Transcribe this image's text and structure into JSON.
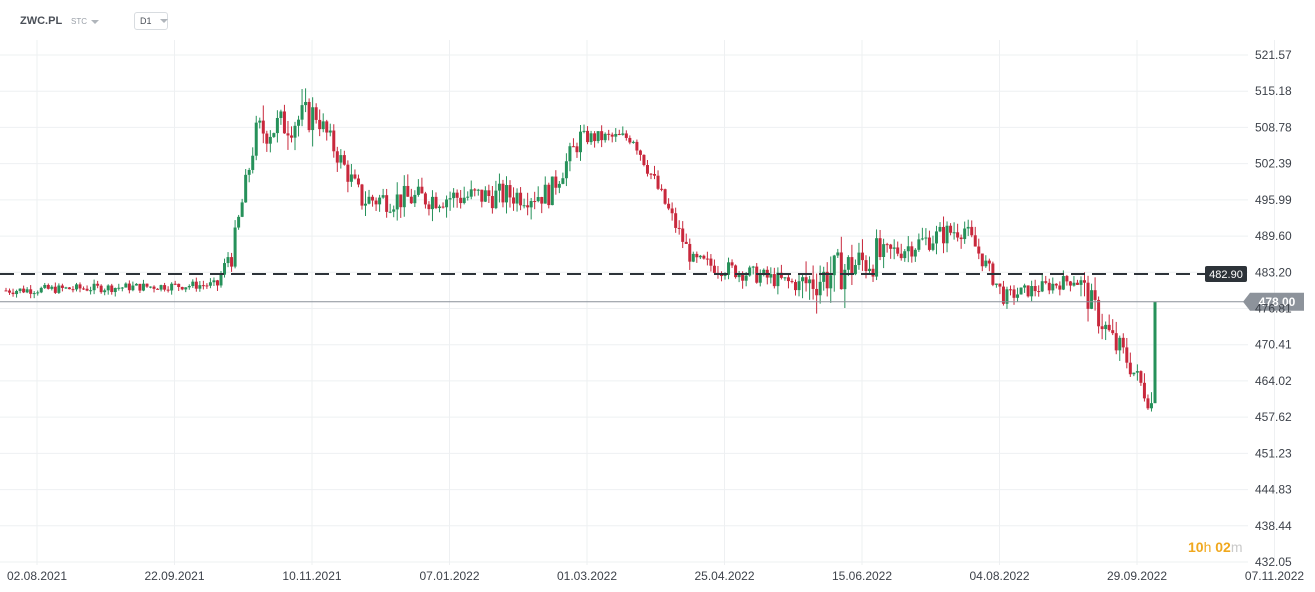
{
  "header": {
    "symbol": "ZWC.PL",
    "source": "STC",
    "timeframe": "D1"
  },
  "countdown": {
    "hours": "10",
    "h": "h",
    "minutes": "02",
    "m": "m"
  },
  "colors": {
    "up": "#26915a",
    "down": "#c8283c",
    "grid": "#eef0f2",
    "dashed_line": "#2d3339",
    "price_line": "#8a9099",
    "price_tag_bg": "#8d939b",
    "level_tag_bg": "#2d3339"
  },
  "chart_data": {
    "type": "candlestick",
    "y_ticks": [
      "521.57",
      "515.18",
      "508.78",
      "502.39",
      "495.99",
      "489.60",
      "483.20",
      "476.81",
      "470.41",
      "464.02",
      "457.62",
      "451.23",
      "444.83",
      "438.44",
      "432.05"
    ],
    "x_ticks": [
      "02.08.2021",
      "22.09.2021",
      "10.11.2021",
      "07.01.2022",
      "01.03.2022",
      "25.04.2022",
      "15.06.2022",
      "04.08.2022",
      "29.09.2022",
      "07.11.2022"
    ],
    "ylim": [
      432.05,
      521.57
    ],
    "horizontal_level": {
      "value": 482.9,
      "label": "482.90",
      "style": "dashed"
    },
    "last_price": {
      "value": 478.0,
      "label": "478.00"
    },
    "segments": [
      {
        "from": 480.0,
        "to": 481.0,
        "count": 60,
        "amp": 1.6
      },
      {
        "from": 481.0,
        "to": 486.0,
        "count": 4,
        "amp": 2.0
      },
      {
        "from": 486.0,
        "to": 508.0,
        "count": 8,
        "amp": 4.0
      },
      {
        "from": 508.0,
        "to": 511.0,
        "count": 16,
        "amp": 6.0
      },
      {
        "from": 511.0,
        "to": 496.0,
        "count": 14,
        "amp": 4.0
      },
      {
        "from": 496.0,
        "to": 497.0,
        "count": 52,
        "amp": 4.5
      },
      {
        "from": 497.0,
        "to": 507.0,
        "count": 10,
        "amp": 4.0
      },
      {
        "from": 507.0,
        "to": 507.0,
        "count": 14,
        "amp": 2.5
      },
      {
        "from": 507.0,
        "to": 485.0,
        "count": 18,
        "amp": 3.0
      },
      {
        "from": 485.0,
        "to": 481.0,
        "count": 30,
        "amp": 3.0
      },
      {
        "from": 481.0,
        "to": 486.0,
        "count": 22,
        "amp": 7.0
      },
      {
        "from": 486.0,
        "to": 491.0,
        "count": 24,
        "amp": 4.0
      },
      {
        "from": 491.0,
        "to": 479.0,
        "count": 12,
        "amp": 3.0
      },
      {
        "from": 479.0,
        "to": 482.0,
        "count": 20,
        "amp": 2.5
      },
      {
        "from": 482.0,
        "to": 470.0,
        "count": 12,
        "amp": 5.0
      },
      {
        "from": 470.0,
        "to": 460.0,
        "count": 10,
        "amp": 4.0
      },
      {
        "from": 460.0,
        "to": 478.0,
        "count": 1,
        "amp": 0
      }
    ]
  }
}
